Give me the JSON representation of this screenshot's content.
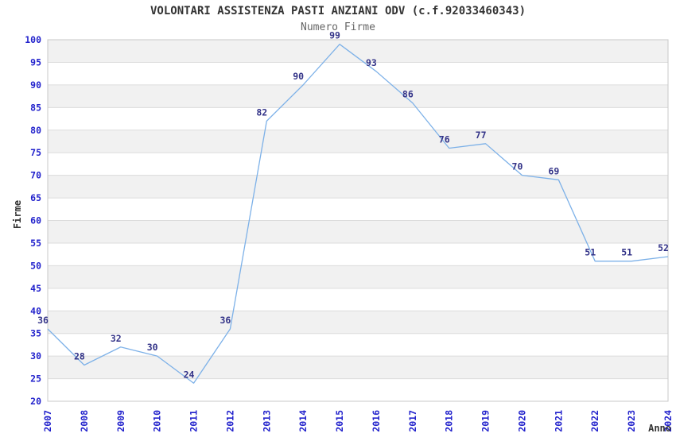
{
  "title": "VOLONTARI ASSISTENZA PASTI ANZIANI ODV (c.f.92033460343)",
  "subtitle": "Numero Firme",
  "chart_data": {
    "type": "line",
    "title": "VOLONTARI ASSISTENZA PASTI ANZIANI ODV (c.f.92033460343)",
    "subtitle": "Numero Firme",
    "xlabel": "Anno",
    "ylabel": "Firme",
    "x": [
      "2007",
      "2008",
      "2009",
      "2010",
      "2011",
      "2012",
      "2013",
      "2014",
      "2015",
      "2016",
      "2017",
      "2018",
      "2019",
      "2020",
      "2021",
      "2022",
      "2023",
      "2024"
    ],
    "values": [
      36,
      28,
      32,
      30,
      24,
      36,
      82,
      90,
      99,
      93,
      86,
      76,
      77,
      70,
      69,
      51,
      51,
      52
    ],
    "ylim": [
      20,
      100
    ],
    "ytick_step": 5,
    "grid": true,
    "legend_position": "none",
    "point_labels_shown": true,
    "colors": {
      "line": "#7db1e8",
      "value_label": "#333388",
      "tick_label": "#2222cc",
      "band": "#f1f1f1",
      "gridline": "#dcdcdc",
      "plot_border": "#c8c8c8",
      "title": "#333333",
      "subtitle": "#666666",
      "axis_title": "#333333",
      "background": "#ffffff"
    }
  }
}
